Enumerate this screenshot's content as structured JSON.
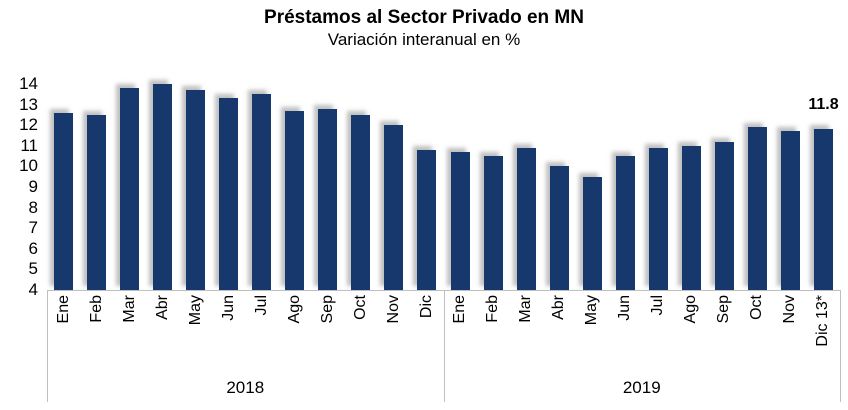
{
  "chart_data": {
    "type": "bar",
    "title": "Préstamos al Sector Privado en MN",
    "subtitle": "Variación interanual en %",
    "xlabel": "",
    "ylabel": "",
    "ylim": [
      4,
      14
    ],
    "yticks": [
      14,
      13,
      12,
      11,
      10,
      9,
      8,
      7,
      6,
      5,
      4
    ],
    "grid": false,
    "legend": false,
    "bar_color": "#16386d",
    "categories": [
      "Ene",
      "Feb",
      "Mar",
      "Abr",
      "May",
      "Jun",
      "Jul",
      "Ago",
      "Sep",
      "Oct",
      "Nov",
      "Dic",
      "Ene",
      "Feb",
      "Mar",
      "Abr",
      "May",
      "Jun",
      "Jul",
      "Ago",
      "Sep",
      "Oct",
      "Nov",
      "Dic 13*"
    ],
    "series": [
      {
        "name": "Variación interanual en %",
        "values": [
          12.6,
          12.5,
          13.8,
          14.0,
          13.7,
          13.3,
          13.5,
          12.7,
          12.8,
          12.5,
          12.0,
          10.8,
          10.7,
          10.5,
          10.9,
          10.0,
          9.5,
          10.5,
          10.9,
          11.0,
          11.2,
          11.9,
          11.7,
          11.8
        ]
      }
    ],
    "groups": [
      {
        "label": "2018",
        "from": 0,
        "to": 11
      },
      {
        "label": "2019",
        "from": 12,
        "to": 23
      }
    ],
    "annotations": [
      {
        "index": 23,
        "text": "11.8"
      }
    ]
  }
}
